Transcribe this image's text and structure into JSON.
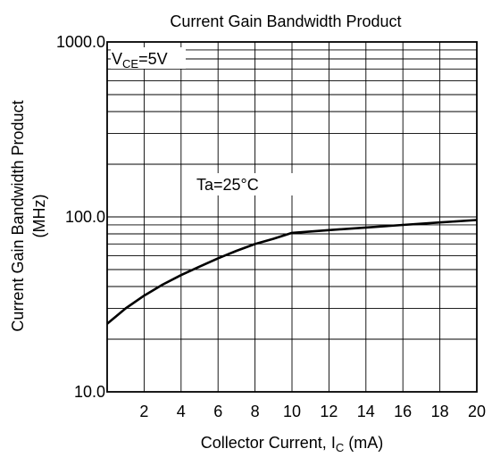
{
  "chart_data": {
    "type": "line",
    "title": "Current Gain Bandwidth Product",
    "xlabel_main": "Collector Current, I",
    "xlabel_sub": "C",
    "xlabel_unit": " (mA)",
    "ylabel_line1": "Current Gain Bandwidth Product",
    "ylabel_line2": "(MHz)",
    "x_ticks": [
      "2",
      "4",
      "6",
      "8",
      "10",
      "12",
      "14",
      "16",
      "18",
      "20"
    ],
    "y_ticks": [
      "1000.0",
      "100.0",
      "10.0"
    ],
    "xlim": [
      0,
      20
    ],
    "ylim": [
      10,
      1000
    ],
    "y_scale": "log",
    "grid": true,
    "annotations": {
      "vce_prefix": "V",
      "vce_sub": "CE",
      "vce_value": "=5V",
      "ta": "Ta=25°C"
    },
    "series": [
      {
        "x": [
          0,
          1,
          2,
          3,
          4,
          5,
          6,
          7,
          8,
          9,
          10,
          12,
          14,
          16,
          18,
          20
        ],
        "values": [
          24.5,
          30,
          35.5,
          41,
          46.5,
          52,
          58,
          64,
          70,
          75,
          81,
          84,
          87,
          90,
          93,
          96
        ]
      }
    ]
  }
}
